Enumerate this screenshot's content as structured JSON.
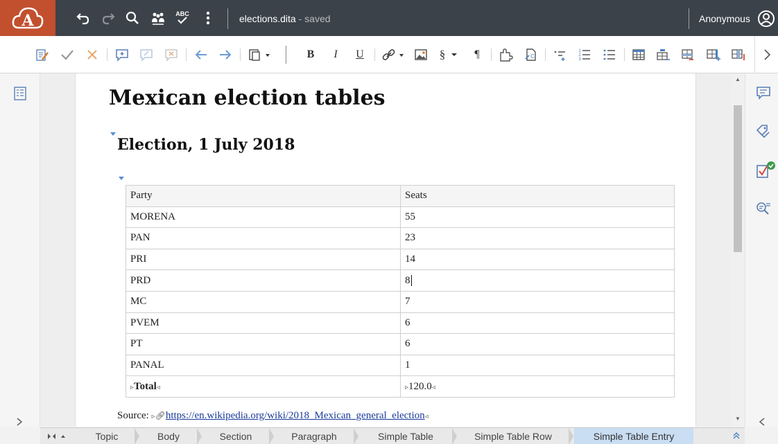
{
  "app": {
    "logo_letter": "A",
    "brand_color": "#c2502e",
    "topbar_color": "#3c4249"
  },
  "document": {
    "filename": "elections.dita",
    "status": "- saved"
  },
  "user": {
    "name": "Anonymous"
  },
  "topbar_icons": [
    "undo-icon",
    "redo-icon",
    "search-icon",
    "review-icon",
    "spellcheck-icon",
    "more-icon"
  ],
  "spellcheck_label": "ABC",
  "toolbar": {
    "bold": "B",
    "italic": "I",
    "underline": "U",
    "section": "§",
    "pilcrow": "¶"
  },
  "content": {
    "title": "Mexican election tables",
    "subtitle": "Election, 1 July 2018",
    "table": {
      "headers": [
        "Party",
        "Seats"
      ],
      "rows": [
        [
          "MORENA",
          "55"
        ],
        [
          "PAN",
          "23"
        ],
        [
          "PRI",
          "14"
        ],
        [
          "PRD",
          "8"
        ],
        [
          "MC",
          "7"
        ],
        [
          "PVEM",
          "6"
        ],
        [
          "PT",
          "6"
        ],
        [
          "PANAL",
          "1"
        ]
      ],
      "total_label": "Total",
      "total_value": "120.0"
    },
    "source_label": "Source:",
    "source_url": "https://en.wikipedia.org/wiki/2018_Mexican_general_election"
  },
  "breadcrumb": [
    "Topic",
    "Body",
    "Section",
    "Paragraph",
    "Simple Table",
    "Simple Table Row",
    "Simple Table Entry"
  ]
}
